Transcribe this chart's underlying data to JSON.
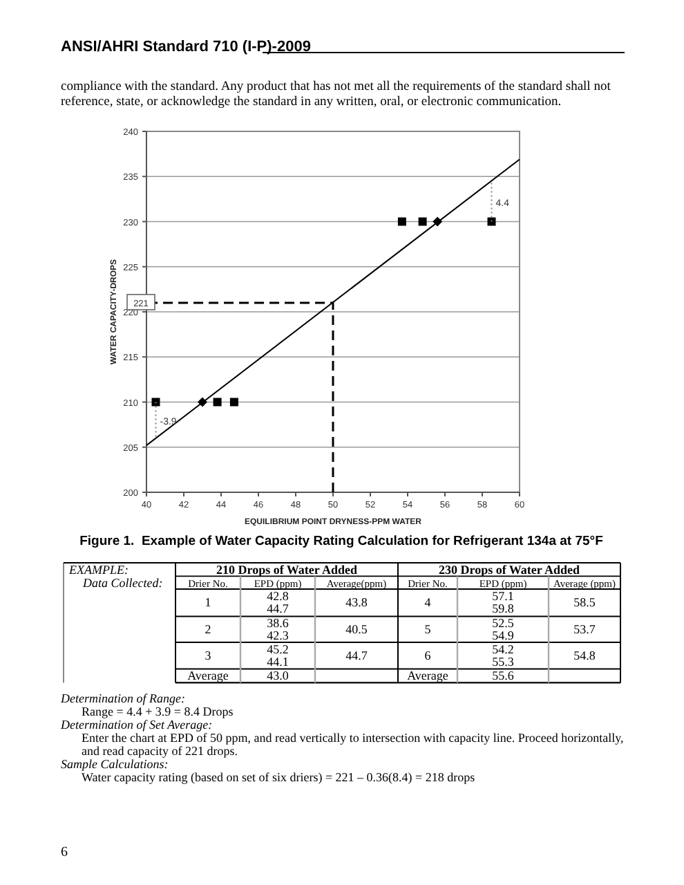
{
  "chart_data": {
    "type": "line",
    "title": "Figure 1.  Example of Water Capacity Rating Calculation for Refrigerant 134a at 75°F",
    "xlabel": "EQUILIBRIUM POINT DRYNESS-PPM WATER",
    "ylabel": "WATER CAPACITY-DROPS",
    "xlim": [
      40,
      60
    ],
    "ylim": [
      200,
      240
    ],
    "xticks": [
      40,
      42,
      44,
      46,
      48,
      50,
      52,
      54,
      56,
      58,
      60
    ],
    "yticks": [
      200,
      205,
      210,
      215,
      220,
      225,
      230,
      235,
      240
    ],
    "grid": "y",
    "series": [
      {
        "type": "line",
        "color": "#000000",
        "line_style": "solid",
        "marker": "none",
        "x": [
          40,
          60
        ],
        "values": [
          205.2,
          236.9
        ]
      },
      {
        "type": "scatter",
        "color": "#000000",
        "marker": "square",
        "x": [
          40.5,
          43.8,
          44.7,
          53.7,
          54.8,
          58.5
        ],
        "values": [
          210,
          210,
          210,
          230,
          230,
          230
        ]
      },
      {
        "type": "scatter",
        "color": "#000000",
        "marker": "diamond",
        "x": [
          43.0,
          55.6
        ],
        "values": [
          210,
          230
        ]
      },
      {
        "type": "line",
        "color": "#000000",
        "line_style": "dashed",
        "marker": "none",
        "x": [
          50,
          50,
          40
        ],
        "values": [
          200,
          221,
          221
        ]
      },
      {
        "type": "line",
        "color": "#808080",
        "line_style": "dotted",
        "marker": "none",
        "x": [
          58.5,
          58.5
        ],
        "values": [
          230,
          234.4
        ]
      },
      {
        "type": "line",
        "color": "#808080",
        "line_style": "dotted",
        "marker": "none",
        "x": [
          40.5,
          40.5
        ],
        "values": [
          210,
          206.1
        ]
      }
    ],
    "annotations": [
      {
        "text": "4.4",
        "x": 58.5,
        "y": 232.2
      },
      {
        "text": "-3.9",
        "x": 40.5,
        "y": 208
      },
      {
        "text": "221",
        "x": 40,
        "y": 221
      },
      "ANSI/AHRI Standard 710 (I-P)-2009",
      "compliance with the standard.  Any product that has not met all the requirements of the standard shall not reference, state, or acknowledge the standard in any written, oral, or electronic communication.",
      "EXAMPLE:",
      "Data Collected:",
      "210 Drops of Water Added",
      "230 Drops of Water Added",
      "Drier No.",
      "EPD (ppm)",
      "Average(ppm)",
      "Drier No.",
      "EPD (ppm)",
      "Average (ppm)",
      "1",
      "42.8",
      "44.7",
      "43.8",
      "4",
      "57.1",
      "59.8",
      "58.5",
      "2",
      "38.6",
      "42.3",
      "40.5",
      "5",
      "52.5",
      "54.9",
      "53.7",
      "3",
      "45.2",
      "44.1",
      "44.7",
      "6",
      "54.2",
      "55.3",
      "54.8",
      "Average",
      "43.0",
      "Average",
      "55.6",
      "Determination of Range:",
      "Range = 4.4 + 3.9 = 8.4 Drops",
      "Determination of Set Average:",
      "Enter the chart at EPD of 50 ppm, and read vertically to intersection with capacity line.  Proceed horizontally, and read capacity of 221 drops.",
      "Sample Calculations:",
      "Water capacity rating (based on set of six driers) = 221 – 0.36(8.4) = 218 drops",
      "6"
    ]
  }
}
